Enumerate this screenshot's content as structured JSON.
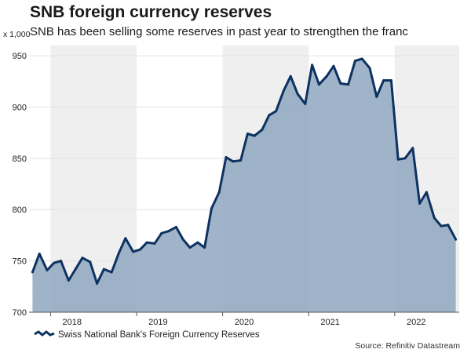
{
  "chart_data": {
    "type": "area",
    "title": "SNB foreign currency reserves",
    "subtitle": "SNB has been selling some reserves in past year to strengthen the franc",
    "ylabel": "x 1,000",
    "ylim": [
      700,
      960
    ],
    "yticks": [
      700,
      750,
      800,
      850,
      900,
      950
    ],
    "xlim": [
      2017.75,
      2022.75
    ],
    "xticks": [
      {
        "label": "2018",
        "x": 2018.25
      },
      {
        "label": "2019",
        "x": 2019.25
      },
      {
        "label": "2020",
        "x": 2020.25
      },
      {
        "label": "2021",
        "x": 2021.25
      },
      {
        "label": "2022",
        "x": 2022.25
      }
    ],
    "shaded_years": [
      2018,
      2020,
      2022
    ],
    "legend": "bottom-left",
    "grid": true,
    "series": [
      {
        "name": "Swiss National Bank's Foreign Currency Reserves",
        "color": "#0d3261",
        "fill": "#8fa7c0",
        "x": [
          2017.79,
          2017.87,
          2017.96,
          2018.04,
          2018.12,
          2018.21,
          2018.29,
          2018.37,
          2018.46,
          2018.54,
          2018.62,
          2018.71,
          2018.79,
          2018.87,
          2018.96,
          2019.04,
          2019.12,
          2019.21,
          2019.29,
          2019.37,
          2019.46,
          2019.54,
          2019.62,
          2019.71,
          2019.79,
          2019.87,
          2019.96,
          2020.04,
          2020.12,
          2020.21,
          2020.29,
          2020.37,
          2020.46,
          2020.54,
          2020.62,
          2020.71,
          2020.79,
          2020.87,
          2020.96,
          2021.04,
          2021.12,
          2021.21,
          2021.29,
          2021.37,
          2021.46,
          2021.54,
          2021.62,
          2021.71,
          2021.79,
          2021.87,
          2021.96,
          2022.04,
          2022.12,
          2022.21,
          2022.29,
          2022.37,
          2022.46,
          2022.54,
          2022.62,
          2022.71
        ],
        "values": [
          739,
          757,
          741,
          748,
          750,
          731,
          742,
          753,
          749,
          728,
          742,
          739,
          757,
          772,
          759,
          761,
          768,
          767,
          777,
          779,
          783,
          771,
          763,
          768,
          763,
          801,
          817,
          851,
          847,
          848,
          874,
          872,
          878,
          892,
          896,
          916,
          930,
          913,
          903,
          941,
          922,
          930,
          940,
          923,
          922,
          945,
          947,
          938,
          910,
          926,
          926,
          849,
          850,
          860,
          806,
          817,
          792,
          784,
          785,
          771
        ]
      }
    ]
  },
  "source": "Source: Refinitiv Datastream"
}
